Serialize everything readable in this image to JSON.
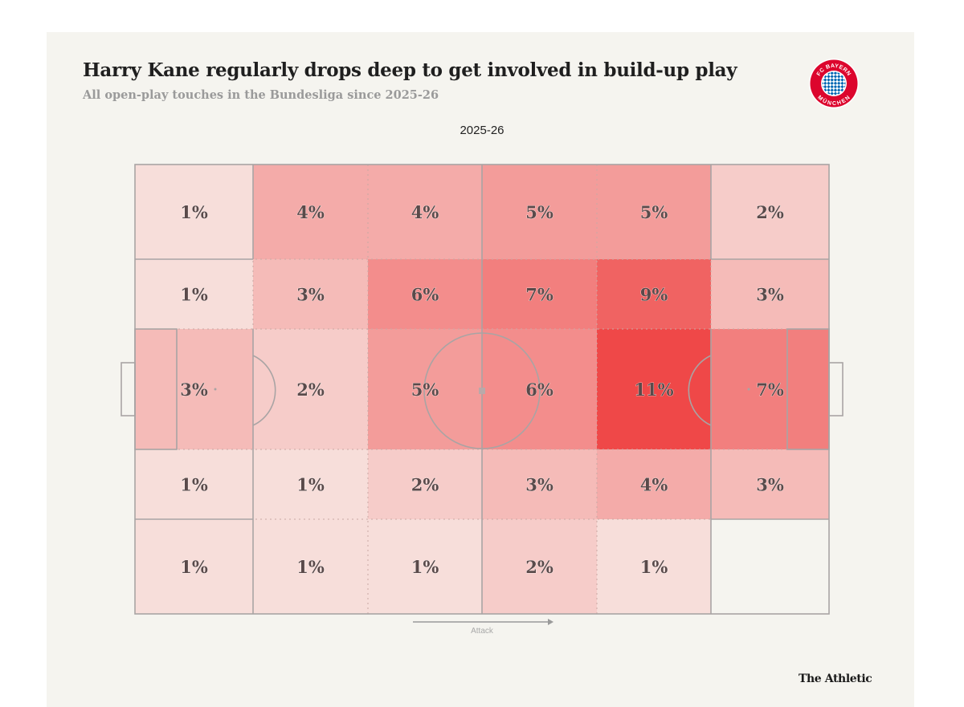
{
  "header": {
    "title": "Harry Kane regularly drops deep to get involved in build-up play",
    "subtitle": "All open-play touches in the Bundesliga since 2025-26",
    "season_label": "2025-26"
  },
  "badge": {
    "icon": "fc-bayern-munchen-crest-icon",
    "text_top": "FC BAYERN",
    "text_bottom": "MÜNCHEN",
    "colors": {
      "red": "#dc052d",
      "blue": "#0066b2",
      "white": "#ffffff"
    }
  },
  "footer": {
    "brand": "The Athletic",
    "direction_label": "Attack"
  },
  "colors": {
    "background": "#f5f4ef",
    "line": "#a9a4a4",
    "scale_low": "#f8f4f0",
    "scale_high": "#ef4848"
  },
  "chart_data": {
    "type": "heatmap",
    "title": "Harry Kane regularly drops deep to get involved in build-up play",
    "subtitle": "All open-play touches in the Bundesliga since 2025-26",
    "panel_title": "2025-26",
    "xlabel": "Attack",
    "direction": "left-to-right",
    "unit": "% of open-play touches",
    "columns": 6,
    "rows": 5,
    "row_order": "top-to-bottom",
    "values": [
      [
        1,
        4,
        4,
        5,
        5,
        2
      ],
      [
        1,
        3,
        6,
        7,
        9,
        3
      ],
      [
        3,
        2,
        5,
        6,
        11,
        7
      ],
      [
        1,
        1,
        2,
        3,
        4,
        3
      ],
      [
        1,
        1,
        1,
        2,
        1,
        null
      ]
    ],
    "labels": [
      [
        "1%",
        "4%",
        "4%",
        "5%",
        "5%",
        "2%"
      ],
      [
        "1%",
        "3%",
        "6%",
        "7%",
        "9%",
        "3%"
      ],
      [
        "3%",
        "2%",
        "5%",
        "6%",
        "11%",
        "7%"
      ],
      [
        "1%",
        "1%",
        "2%",
        "3%",
        "4%",
        "3%"
      ],
      [
        "1%",
        "1%",
        "1%",
        "2%",
        "1%",
        ""
      ]
    ],
    "color_range": [
      0,
      11
    ]
  }
}
